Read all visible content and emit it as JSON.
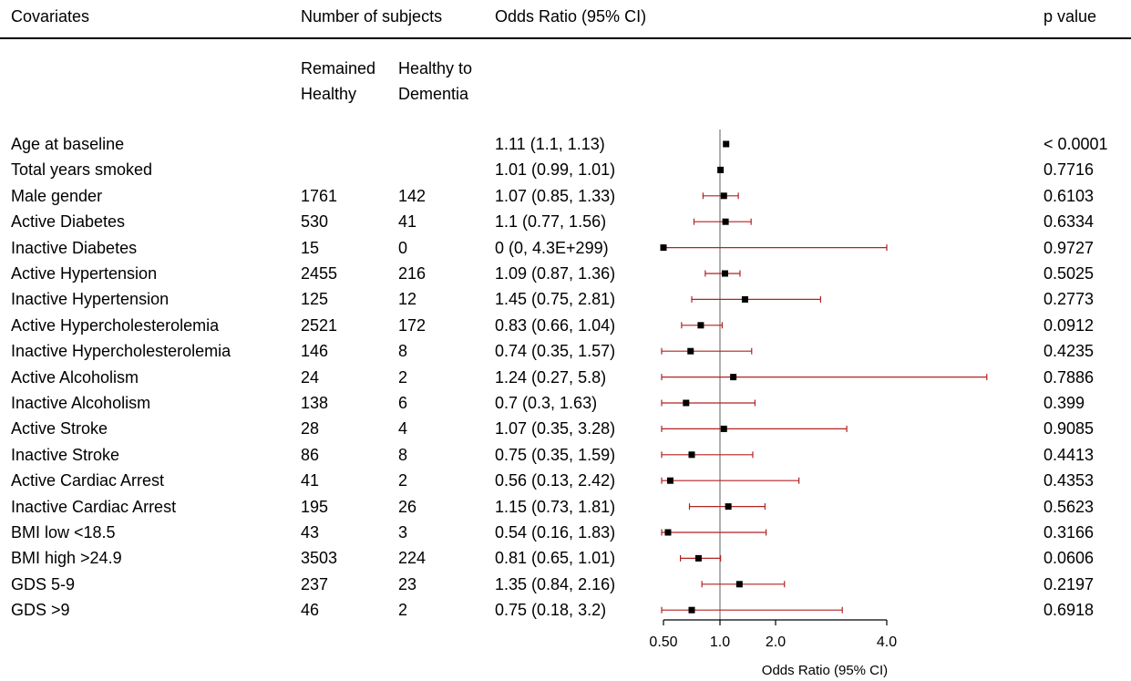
{
  "headers": {
    "covariates": "Covariates",
    "num_subjects": "Number of subjects",
    "odds_ratio": "Odds Ratio (95% CI)",
    "p_value": "p value",
    "remained_line1": "Remained",
    "remained_line2": "Healthy",
    "dementia_line1": "Healthy to",
    "dementia_line2": "Dementia"
  },
  "rows": [
    {
      "label": "Age at baseline",
      "remained": "",
      "dementia": "",
      "ci_text": "1.11 (1.1, 1.13)",
      "p": "< 0.0001"
    },
    {
      "label": "Total years smoked",
      "remained": "",
      "dementia": "",
      "ci_text": "1.01 (0.99, 1.01)",
      "p": "0.7716"
    },
    {
      "label": "Male gender",
      "remained": "1761",
      "dementia": "142",
      "ci_text": "1.07 (0.85, 1.33)",
      "p": "0.6103"
    },
    {
      "label": "Active Diabetes",
      "remained": "530",
      "dementia": "41",
      "ci_text": "1.1 (0.77, 1.56)",
      "p": "0.6334"
    },
    {
      "label": "Inactive Diabetes",
      "remained": "15",
      "dementia": "0",
      "ci_text": "0 (0, 4.3E+299)",
      "p": "0.9727"
    },
    {
      "label": "Active Hypertension",
      "remained": "2455",
      "dementia": "216",
      "ci_text": "1.09 (0.87, 1.36)",
      "p": "0.5025"
    },
    {
      "label": "Inactive Hypertension",
      "remained": "125",
      "dementia": "12",
      "ci_text": "1.45 (0.75, 2.81)",
      "p": "0.2773"
    },
    {
      "label": "Active Hypercholesterolemia",
      "remained": "2521",
      "dementia": "172",
      "ci_text": "0.83 (0.66, 1.04)",
      "p": "0.0912"
    },
    {
      "label": "Inactive Hypercholesterolemia",
      "remained": "146",
      "dementia": "8",
      "ci_text": "0.74 (0.35, 1.57)",
      "p": "0.4235"
    },
    {
      "label": "Active Alcoholism",
      "remained": "24",
      "dementia": "2",
      "ci_text": "1.24 (0.27, 5.8)",
      "p": "0.7886"
    },
    {
      "label": "Inactive Alcoholism",
      "remained": "138",
      "dementia": "6",
      "ci_text": "0.7 (0.3, 1.63)",
      "p": "0.399"
    },
    {
      "label": "Active Stroke",
      "remained": "28",
      "dementia": "4",
      "ci_text": "1.07 (0.35, 3.28)",
      "p": "0.9085"
    },
    {
      "label": "Inactive Stroke",
      "remained": "86",
      "dementia": "8",
      "ci_text": "0.75 (0.35, 1.59)",
      "p": "0.4413"
    },
    {
      "label": "Active Cardiac Arrest",
      "remained": "41",
      "dementia": "2",
      "ci_text": "0.56 (0.13, 2.42)",
      "p": "0.4353"
    },
    {
      "label": "Inactive Cardiac Arrest",
      "remained": "195",
      "dementia": "26",
      "ci_text": "1.15 (0.73, 1.81)",
      "p": "0.5623"
    },
    {
      "label": "BMI low <18.5",
      "remained": "43",
      "dementia": "3",
      "ci_text": "0.54 (0.16, 1.83)",
      "p": "0.3166"
    },
    {
      "label": "BMI high >24.9",
      "remained": "3503",
      "dementia": "224",
      "ci_text": "0.81 (0.65, 1.01)",
      "p": "0.0606"
    },
    {
      "label": "GDS 5-9",
      "remained": "237",
      "dementia": "23",
      "ci_text": "1.35 (0.84, 2.16)",
      "p": "0.2197"
    },
    {
      "label": "GDS >9",
      "remained": "46",
      "dementia": "2",
      "ci_text": "0.75 (0.18, 3.2)",
      "p": "0.6918"
    }
  ],
  "colors": {
    "ci_line": "#b22222",
    "marker": "#000000",
    "ref_line": "#7a7a7a"
  },
  "chart_data": {
    "type": "forest",
    "xlabel": "Odds Ratio (95% CI)",
    "x_ticks": [
      0.5,
      1.0,
      2.0,
      4.0
    ],
    "x_tick_labels": [
      "0.50",
      "1.0",
      "2.0",
      "4.0"
    ],
    "reference_line": 1.0,
    "categories": [
      "Age at baseline",
      "Total years smoked",
      "Male gender",
      "Active Diabetes",
      "Inactive Diabetes",
      "Active Hypertension",
      "Inactive Hypertension",
      "Active Hypercholesterolemia",
      "Inactive Hypercholesterolemia",
      "Active Alcoholism",
      "Inactive Alcoholism",
      "Active Stroke",
      "Inactive Stroke",
      "Active Cardiac Arrest",
      "Inactive Cardiac Arrest",
      "BMI low <18.5",
      "BMI high >24.9",
      "GDS 5-9",
      "GDS >9"
    ],
    "or": [
      1.11,
      1.01,
      1.07,
      1.1,
      0,
      1.09,
      1.45,
      0.83,
      0.74,
      1.24,
      0.7,
      1.07,
      0.75,
      0.56,
      1.15,
      0.54,
      0.81,
      1.35,
      0.75
    ],
    "ci_low": [
      1.1,
      0.99,
      0.85,
      0.77,
      0,
      0.87,
      0.75,
      0.66,
      0.35,
      0.27,
      0.3,
      0.35,
      0.35,
      0.13,
      0.73,
      0.16,
      0.65,
      0.84,
      0.18
    ],
    "ci_high": [
      1.13,
      1.01,
      1.33,
      1.56,
      4.3e+299,
      1.36,
      2.81,
      1.04,
      1.57,
      5.8,
      1.63,
      3.28,
      1.59,
      2.42,
      1.81,
      1.83,
      1.01,
      2.16,
      3.2
    ]
  }
}
